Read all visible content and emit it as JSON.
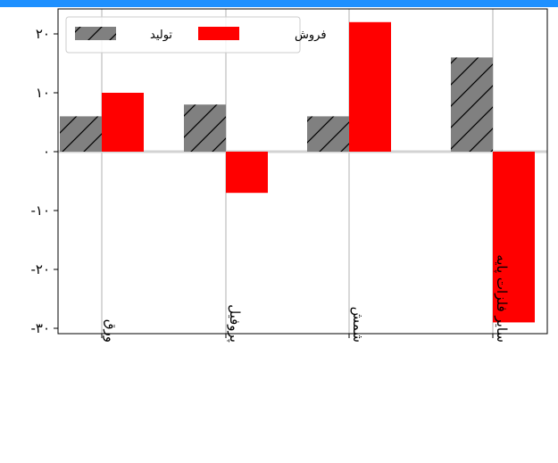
{
  "chart_data": {
    "type": "bar",
    "categories": [
      "ورق",
      "پروفیل",
      "شمش",
      "سایر فلزات پایه"
    ],
    "series": [
      {
        "name": "تولید",
        "values": [
          6,
          8,
          6,
          16
        ],
        "color": "#808080",
        "hatch": "diagonal"
      },
      {
        "name": "فروش",
        "values": [
          10,
          -7,
          22,
          -29
        ],
        "color": "#ff0000"
      }
    ],
    "yticks": [
      20,
      10,
      0,
      -10,
      -20,
      -30
    ],
    "ytick_labels": [
      "۲۰",
      "۱۰",
      "۰",
      "-۱۰",
      "-۲۰",
      "-۳۰"
    ],
    "ylim": [
      -31,
      25
    ],
    "grid": {
      "x": true,
      "y": false,
      "zero_line": true
    },
    "legend": {
      "position": "top-left",
      "entries": [
        "تولید",
        "فروش"
      ]
    },
    "xtick_rotation": "vertical"
  }
}
